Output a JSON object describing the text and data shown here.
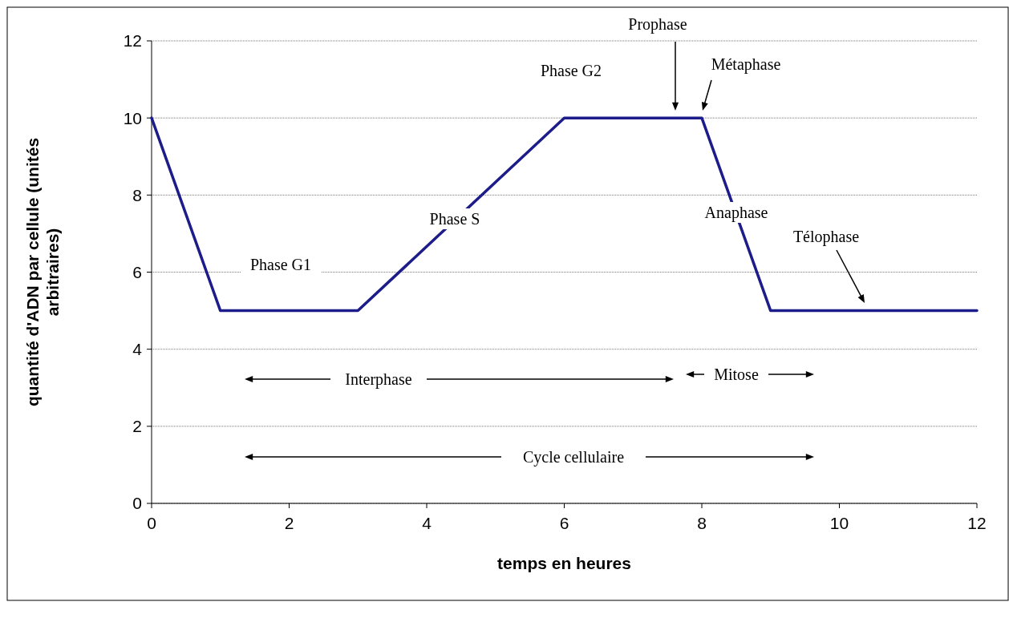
{
  "chart_data": {
    "type": "line",
    "xlabel": "temps en heures",
    "ylabel": "quantité d'ADN par cellule (unités arbitraires)",
    "x": [
      0,
      1,
      3,
      6,
      8,
      9,
      12
    ],
    "series": [
      {
        "color": "#1c1c8a",
        "values": [
          10,
          5,
          5,
          10,
          10,
          5,
          5
        ]
      }
    ],
    "xlim": [
      0,
      12
    ],
    "xticks": [
      0,
      2,
      4,
      6,
      8,
      10,
      12
    ],
    "ylim": [
      0,
      12
    ],
    "yticks": [
      0,
      2,
      4,
      6,
      8,
      10,
      12
    ],
    "grid": "y",
    "marker": "none",
    "line_style": "solid",
    "annotations": [
      "Phase G1",
      "Phase S",
      "Phase G2",
      "Prophase",
      "Métaphase",
      "Anaphase",
      "Télophase",
      "Interphase",
      "Mitose",
      "Cycle cellulaire"
    ]
  }
}
